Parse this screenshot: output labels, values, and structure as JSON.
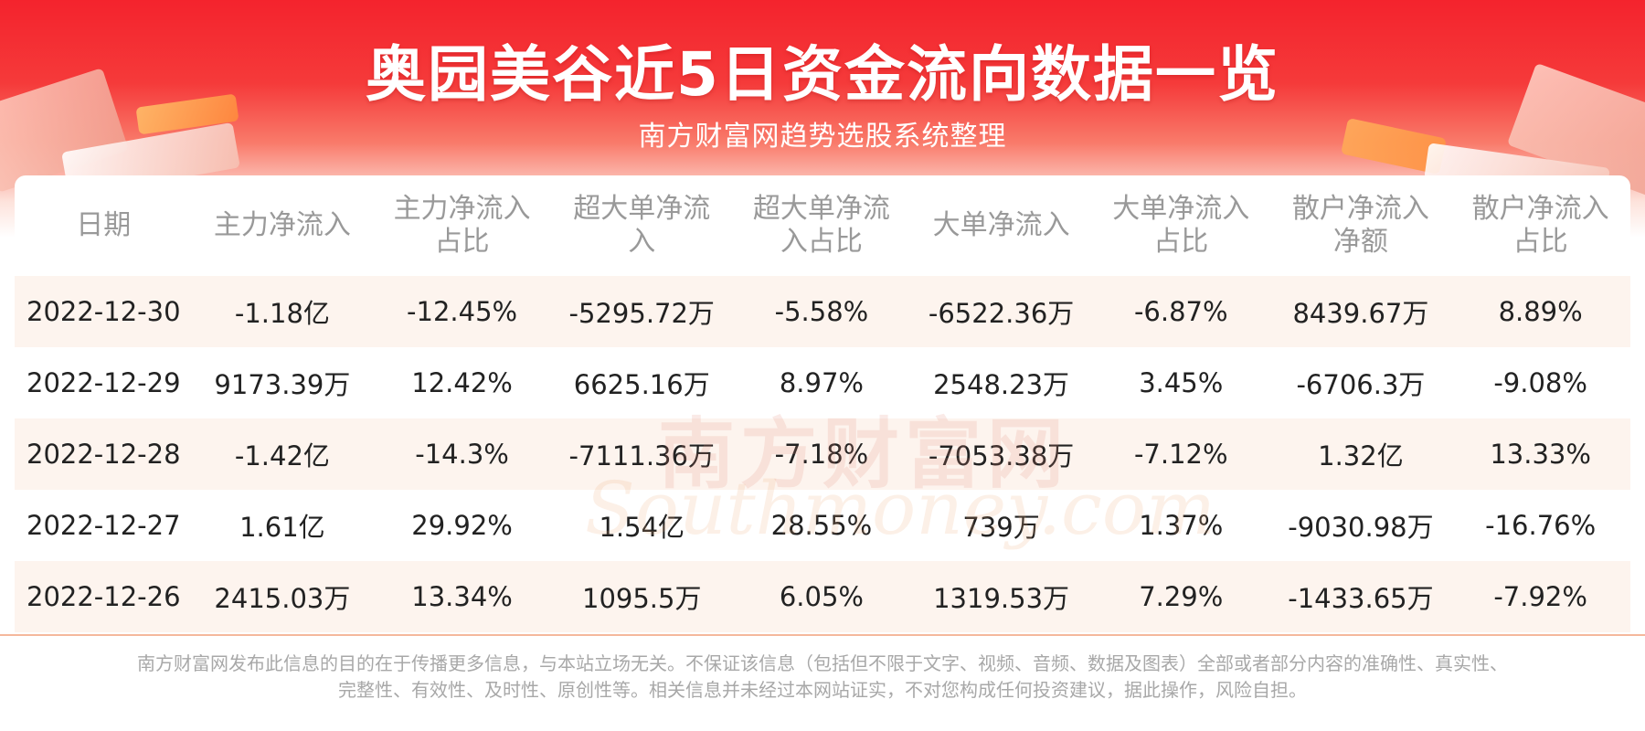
{
  "header": {
    "title": "奥园美谷近5日资金流向数据一览",
    "subtitle": "南方财富网趋势选股系统整理"
  },
  "table": {
    "columns": [
      "日期",
      "主力净流入",
      "主力净流入\n占比",
      "超大单净流\n入",
      "超大单净流\n入占比",
      "大单净流入",
      "大单净流入\n占比",
      "散户净流入\n净额",
      "散户净流入\n占比"
    ],
    "rows": [
      [
        "2022-12-30",
        "-1.18亿",
        "-12.45%",
        "-5295.72万",
        "-5.58%",
        "-6522.36万",
        "-6.87%",
        "8439.67万",
        "8.89%"
      ],
      [
        "2022-12-29",
        "9173.39万",
        "12.42%",
        "6625.16万",
        "8.97%",
        "2548.23万",
        "3.45%",
        "-6706.3万",
        "-9.08%"
      ],
      [
        "2022-12-28",
        "-1.42亿",
        "-14.3%",
        "-7111.36万",
        "-7.18%",
        "-7053.38万",
        "-7.12%",
        "1.32亿",
        "13.33%"
      ],
      [
        "2022-12-27",
        "1.61亿",
        "29.92%",
        "1.54亿",
        "28.55%",
        "739万",
        "1.37%",
        "-9030.98万",
        "-16.76%"
      ],
      [
        "2022-12-26",
        "2415.03万",
        "13.34%",
        "1095.5万",
        "6.05%",
        "1319.53万",
        "7.29%",
        "-1433.65万",
        "-7.92%"
      ]
    ]
  },
  "watermark": {
    "cn": "南方财富网",
    "en": "Southmoney.com"
  },
  "footer": {
    "line1": "南方财富网发布此信息的目的在于传播更多信息，与本站立场无关。不保证该信息（包括但不限于文字、视频、音频、数据及图表）全部或者部分内容的准确性、真实性、",
    "line2": "完整性、有效性、及时性、原创性等。相关信息并未经过本网站证实，不对您构成任何投资建议，据此操作，风险自担。"
  },
  "colors": {
    "header_red": "#f4232d",
    "row_alt": "#fdf4ee",
    "header_text": "#999999",
    "cell_text": "#222222"
  }
}
